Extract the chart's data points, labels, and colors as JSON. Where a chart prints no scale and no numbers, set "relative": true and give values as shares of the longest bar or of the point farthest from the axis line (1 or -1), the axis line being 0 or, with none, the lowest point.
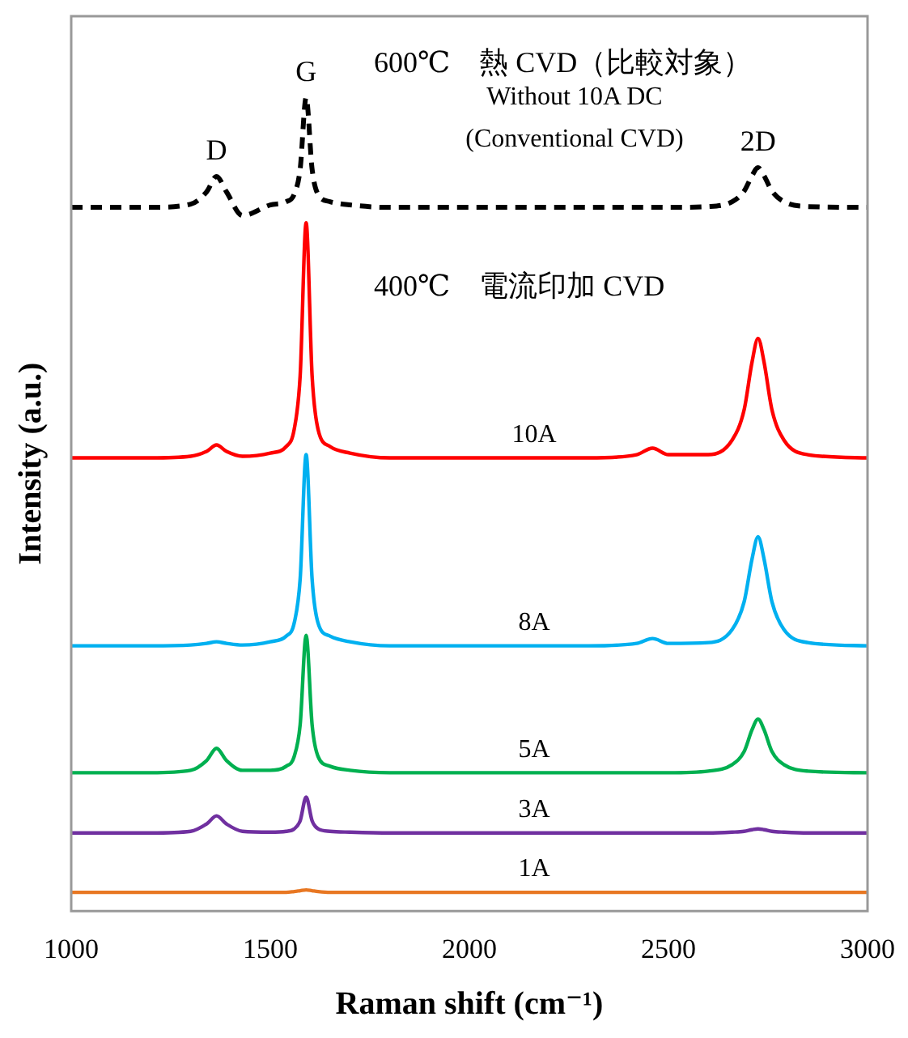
{
  "chart_data": {
    "type": "line",
    "xlabel": "Raman shift (cm⁻¹)",
    "ylabel": "Intensity (a.u.)",
    "relative": true,
    "xlim": [
      1000,
      3000
    ],
    "xticks": [
      1000,
      1500,
      2000,
      2500,
      3000
    ],
    "grid": false,
    "legend": false,
    "marker": "none",
    "x": [
      1000,
      1200,
      1300,
      1340,
      1365,
      1390,
      1430,
      1500,
      1540,
      1560,
      1575,
      1590,
      1605,
      1620,
      1650,
      1700,
      1800,
      2000,
      2300,
      2420,
      2460,
      2500,
      2600,
      2660,
      2690,
      2710,
      2725,
      2740,
      2760,
      2790,
      2850,
      3000
    ],
    "series": [
      {
        "name": "Without 10A DC\n(Conventional CVD)",
        "color": "#000000",
        "line_style": "dashed",
        "values": [
          0.865,
          0.865,
          0.869,
          0.884,
          0.903,
          0.884,
          0.855,
          0.868,
          0.872,
          0.881,
          0.912,
          1.0,
          0.912,
          0.881,
          0.872,
          0.868,
          0.865,
          0.865,
          0.865,
          0.865,
          0.865,
          0.865,
          0.866,
          0.872,
          0.885,
          0.904,
          0.914,
          0.904,
          0.885,
          0.872,
          0.866,
          0.865
        ]
      },
      {
        "name": "10A",
        "color": "#ff0000",
        "values": [
          0.557,
          0.557,
          0.559,
          0.565,
          0.573,
          0.565,
          0.559,
          0.563,
          0.571,
          0.592,
          0.658,
          0.846,
          0.658,
          0.592,
          0.571,
          0.563,
          0.557,
          0.557,
          0.557,
          0.561,
          0.569,
          0.561,
          0.561,
          0.579,
          0.616,
          0.675,
          0.704,
          0.675,
          0.616,
          0.579,
          0.561,
          0.557
        ]
      },
      {
        "name": "8A",
        "color": "#00b0f0",
        "values": [
          0.326,
          0.326,
          0.327,
          0.329,
          0.331,
          0.329,
          0.327,
          0.331,
          0.338,
          0.354,
          0.408,
          0.561,
          0.408,
          0.354,
          0.338,
          0.331,
          0.326,
          0.326,
          0.326,
          0.329,
          0.335,
          0.329,
          0.33,
          0.346,
          0.38,
          0.433,
          0.46,
          0.433,
          0.38,
          0.346,
          0.33,
          0.326
        ]
      },
      {
        "name": "5A",
        "color": "#00b050",
        "values": [
          0.17,
          0.17,
          0.173,
          0.185,
          0.2,
          0.185,
          0.173,
          0.173,
          0.178,
          0.19,
          0.229,
          0.339,
          0.229,
          0.19,
          0.178,
          0.173,
          0.17,
          0.17,
          0.17,
          0.17,
          0.17,
          0.17,
          0.172,
          0.18,
          0.196,
          0.223,
          0.236,
          0.223,
          0.196,
          0.18,
          0.172,
          0.17
        ]
      },
      {
        "name": "3A",
        "color": "#7030a0",
        "values": [
          0.096,
          0.096,
          0.098,
          0.107,
          0.117,
          0.107,
          0.098,
          0.097,
          0.098,
          0.101,
          0.111,
          0.14,
          0.111,
          0.101,
          0.098,
          0.097,
          0.096,
          0.096,
          0.096,
          0.096,
          0.096,
          0.096,
          0.096,
          0.097,
          0.098,
          0.1,
          0.101,
          0.1,
          0.098,
          0.097,
          0.096,
          0.096
        ]
      },
      {
        "name": "1A",
        "color": "#e87722",
        "values": [
          0.023,
          0.023,
          0.023,
          0.023,
          0.023,
          0.023,
          0.023,
          0.023,
          0.023,
          0.024,
          0.025,
          0.026,
          0.025,
          0.024,
          0.023,
          0.023,
          0.023,
          0.023,
          0.023,
          0.023,
          0.023,
          0.023,
          0.023,
          0.023,
          0.023,
          0.023,
          0.023,
          0.023,
          0.023,
          0.023,
          0.023,
          0.023
        ]
      }
    ],
    "annotations": [
      {
        "text": "D",
        "x": 1365,
        "y": 0.903
      },
      {
        "text": "G",
        "x": 1590,
        "y": 1.0
      },
      {
        "text": "2D",
        "x": 2725,
        "y": 0.914
      },
      "600℃　熱 CVD（比較対象）",
      "400℃　電流印加 CVD"
    ]
  }
}
